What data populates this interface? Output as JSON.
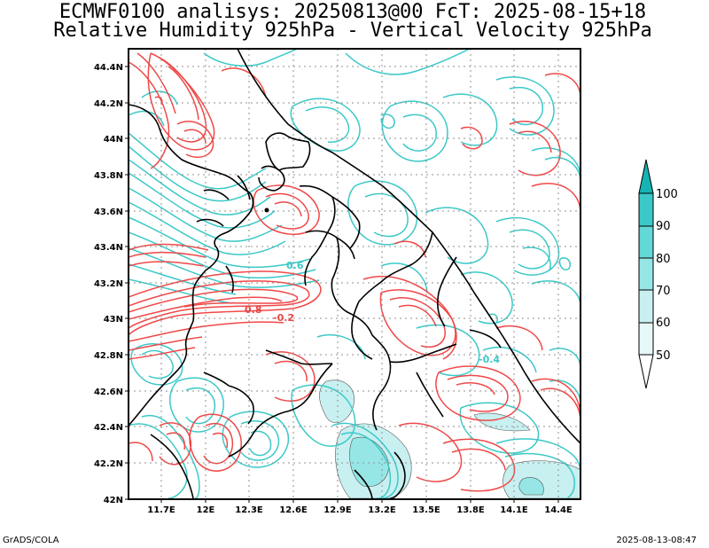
{
  "header": {
    "line1": "ECMWF0100 analisys: 20250813@00 FcT: 2025-08-15+18",
    "line2": "Relative Humidity 925hPa - Vertical Velocity 925hPa"
  },
  "map": {
    "lat_labels": [
      "44.4N",
      "44.2N",
      "44N",
      "43.8N",
      "43.6N",
      "43.4N",
      "43.2N",
      "43N",
      "42.8N",
      "42.6N",
      "42.4N",
      "42.2N",
      "42N"
    ],
    "lon_labels": [
      "11.7E",
      "12E",
      "12.3E",
      "12.6E",
      "12.9E",
      "13.2E",
      "13.5E",
      "13.8E",
      "14.1E",
      "14.4E"
    ],
    "contour_labels": [
      {
        "text": "0.6",
        "color": "#3cc8c8"
      },
      {
        "text": "0.8",
        "color": "#e84848"
      },
      {
        "text": "-0.2",
        "color": "#e84848"
      },
      {
        "text": "-0.4",
        "color": "#3cc8c8"
      }
    ],
    "colors": {
      "rh_contour": "#3cc8c8",
      "omega_contour": "#f04848",
      "shade_light": "#c8f0f0",
      "shade_mid": "#96e6e6"
    }
  },
  "colorbar": {
    "ticks": [
      "100",
      "90",
      "80",
      "70",
      "60",
      "50"
    ],
    "colors": [
      "#14b4b4",
      "#3cc8c8",
      "#64d7d7",
      "#96e6e6",
      "#c8f0f0",
      "#ffffff"
    ]
  },
  "footer": {
    "credit": "GrADS/COLA",
    "timestamp": "2025-08-13-08:47"
  }
}
